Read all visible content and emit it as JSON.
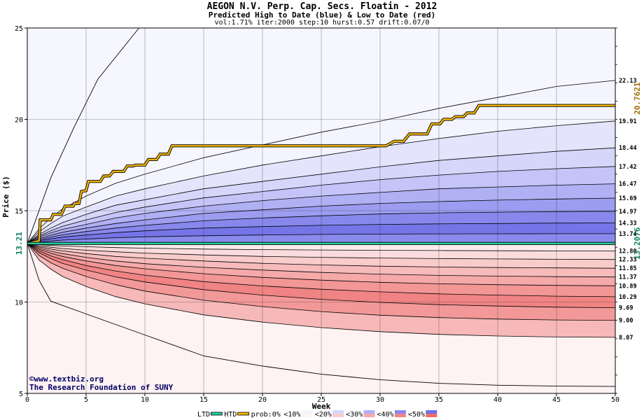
{
  "chart_data": {
    "type": "area",
    "title": "AEGON N.V. Perp. Cap. Secs. Floatin - 2012",
    "subtitle": "Predicted High to Date (blue) &  Low to Date (red)",
    "params": "vol:1.71% iter:2000 step:10 hurst:0.57 drift:0.07/0",
    "xlabel": "Week",
    "ylabel": "Price ($)",
    "xlim": [
      0,
      50
    ],
    "ylim": [
      5,
      25
    ],
    "x_ticks": [
      0,
      5,
      10,
      15,
      20,
      25,
      30,
      35,
      40,
      45,
      50
    ],
    "y_ticks": [
      5,
      10,
      15,
      20,
      25
    ],
    "grid": true,
    "start_price": 13.21,
    "start_price_label": "13.21",
    "weeks": [
      0,
      1,
      2,
      3,
      5,
      7.5,
      10,
      15,
      20,
      25,
      30,
      35,
      40,
      45,
      50
    ],
    "high_quantiles": [
      {
        "label": "22.13",
        "values": [
          13.21,
          14.0,
          14.6,
          15.1,
          15.8,
          16.5,
          17.0,
          17.9,
          18.6,
          19.3,
          19.9,
          20.6,
          21.2,
          21.8,
          22.13
        ]
      },
      {
        "label": "19.91",
        "values": [
          13.21,
          13.85,
          14.3,
          14.7,
          15.2,
          15.8,
          16.2,
          16.9,
          17.5,
          18.0,
          18.5,
          18.95,
          19.35,
          19.65,
          19.91
        ]
      },
      {
        "label": "18.44",
        "values": [
          13.21,
          13.7,
          14.05,
          14.35,
          14.8,
          15.3,
          15.6,
          16.2,
          16.6,
          17.0,
          17.4,
          17.75,
          18.0,
          18.25,
          18.44
        ]
      },
      {
        "label": "17.42",
        "values": [
          13.21,
          13.62,
          13.9,
          14.15,
          14.5,
          14.9,
          15.2,
          15.7,
          16.05,
          16.4,
          16.7,
          16.95,
          17.15,
          17.3,
          17.42
        ]
      },
      {
        "label": "16.47",
        "values": [
          13.21,
          13.55,
          13.78,
          13.98,
          14.25,
          14.6,
          14.85,
          15.25,
          15.55,
          15.8,
          16.0,
          16.2,
          16.3,
          16.4,
          16.47
        ]
      },
      {
        "label": "15.69",
        "values": [
          13.21,
          13.48,
          13.66,
          13.82,
          14.05,
          14.3,
          14.5,
          14.85,
          15.05,
          15.25,
          15.4,
          15.5,
          15.58,
          15.64,
          15.69
        ]
      },
      {
        "label": "14.97",
        "values": [
          13.21,
          13.42,
          13.56,
          13.68,
          13.86,
          14.05,
          14.2,
          14.45,
          14.6,
          14.72,
          14.82,
          14.88,
          14.92,
          14.95,
          14.97
        ]
      },
      {
        "label": "14.33",
        "values": [
          13.21,
          13.36,
          13.46,
          13.55,
          13.67,
          13.8,
          13.9,
          14.05,
          14.13,
          14.2,
          14.25,
          14.28,
          14.3,
          14.32,
          14.33
        ]
      },
      {
        "label": "13.74",
        "values": [
          13.21,
          13.29,
          13.34,
          13.39,
          13.45,
          13.52,
          13.57,
          13.63,
          13.67,
          13.7,
          13.72,
          13.73,
          13.735,
          13.74,
          13.74
        ]
      }
    ],
    "low_quantiles": [
      {
        "label": "12.80",
        "values": [
          13.21,
          13.14,
          13.1,
          13.07,
          13.03,
          12.98,
          12.95,
          12.9,
          12.87,
          12.85,
          12.83,
          12.82,
          12.81,
          12.8,
          12.8
        ]
      },
      {
        "label": "12.33",
        "values": [
          13.21,
          13.08,
          13.0,
          12.93,
          12.84,
          12.75,
          12.68,
          12.58,
          12.5,
          12.45,
          12.41,
          12.38,
          12.36,
          12.34,
          12.33
        ]
      },
      {
        "label": "11.85",
        "values": [
          13.21,
          13.02,
          12.9,
          12.8,
          12.65,
          12.5,
          12.4,
          12.25,
          12.12,
          12.03,
          11.96,
          11.92,
          11.89,
          11.87,
          11.85
        ]
      },
      {
        "label": "11.37",
        "values": [
          13.21,
          12.95,
          12.78,
          12.65,
          12.45,
          12.25,
          12.1,
          11.9,
          11.75,
          11.62,
          11.53,
          11.46,
          11.42,
          11.39,
          11.37
        ]
      },
      {
        "label": "10.89",
        "values": [
          13.21,
          12.88,
          12.67,
          12.5,
          12.25,
          12.0,
          11.82,
          11.55,
          11.35,
          11.2,
          11.08,
          11.0,
          10.95,
          10.91,
          10.89
        ]
      },
      {
        "label": "10.29",
        "values": [
          13.21,
          12.8,
          12.53,
          12.32,
          12.0,
          11.7,
          11.47,
          11.12,
          10.88,
          10.7,
          10.56,
          10.45,
          10.38,
          10.32,
          10.29
        ]
      },
      {
        "label": "9.69",
        "values": [
          13.21,
          12.7,
          12.38,
          12.12,
          11.75,
          11.38,
          11.1,
          10.68,
          10.38,
          10.15,
          9.98,
          9.86,
          9.78,
          9.72,
          9.69
        ]
      },
      {
        "label": "9.00",
        "values": [
          13.21,
          12.55,
          12.15,
          11.85,
          11.4,
          10.95,
          10.6,
          10.1,
          9.75,
          9.48,
          9.28,
          9.15,
          9.07,
          9.02,
          9.0
        ]
      },
      {
        "label": "8.07",
        "values": [
          13.21,
          12.3,
          11.8,
          11.4,
          10.85,
          10.3,
          9.9,
          9.3,
          8.9,
          8.6,
          8.38,
          8.23,
          8.14,
          8.09,
          8.07
        ]
      }
    ],
    "max_line": {
      "weeks": [
        0,
        2,
        4,
        6,
        9.5
      ],
      "values": [
        13.21,
        16.8,
        19.6,
        22.2,
        25.0
      ]
    },
    "min_line": {
      "weeks": [
        0,
        1,
        2,
        5,
        10,
        15,
        20,
        25,
        30,
        35,
        40,
        45,
        50
      ],
      "values": [
        13.21,
        11.2,
        10.05,
        9.35,
        8.2,
        7.05,
        6.5,
        6.05,
        5.75,
        5.55,
        5.45,
        5.4,
        5.38
      ]
    },
    "htd_series": {
      "name": "HTD",
      "final_label": "20.7621",
      "weeks": [
        0,
        1,
        1.1,
        2,
        2.2,
        2.9,
        3.2,
        3.9,
        4.0,
        4.4,
        4.6,
        5,
        5.2,
        6.2,
        6.5,
        7.0,
        7.3,
        8.2,
        8.5,
        9.0,
        9.2,
        10.0,
        10.3,
        11.0,
        11.3,
        12.0,
        12.3,
        30.5,
        31.2,
        32.0,
        32.5,
        34.0,
        34.4,
        35.1,
        35.4,
        36.1,
        36.4,
        37.1,
        37.4,
        38.0,
        38.4,
        50
      ],
      "values": [
        13.21,
        13.35,
        14.5,
        14.5,
        14.8,
        14.8,
        15.25,
        15.25,
        15.4,
        15.4,
        16.05,
        16.1,
        16.6,
        16.6,
        16.9,
        16.9,
        17.15,
        17.15,
        17.45,
        17.45,
        17.5,
        17.5,
        17.8,
        17.8,
        18.1,
        18.1,
        18.55,
        18.55,
        18.8,
        18.8,
        19.2,
        19.2,
        19.75,
        19.75,
        20.0,
        20.0,
        20.15,
        20.15,
        20.35,
        20.35,
        20.76,
        20.76
      ]
    },
    "ltd_series": {
      "name": "LTD",
      "final_label": "13.2076",
      "weeks": [
        0,
        0.5,
        1,
        50
      ],
      "values": [
        13.21,
        13.2076,
        13.2076,
        13.2076
      ]
    },
    "colors": {
      "high_bands": [
        "#f4f4ff",
        "#e4e4fc",
        "#d6d6fa",
        "#c4c4f8",
        "#b0b0f4",
        "#9c9cf0",
        "#8888ec",
        "#7575e8",
        "#8a8aec"
      ],
      "low_bands": [
        "#fdebeb",
        "#fbdcdc",
        "#f9cccc",
        "#f7bbbb",
        "#f5a9a9",
        "#f39696",
        "#f08383",
        "#f29898",
        "#f6b8b8"
      ],
      "above_outer": "#f6f6ff",
      "below_outer": "#fff2f2",
      "htd_line": "#f0b400",
      "ltd_line": "#20d0a0",
      "htd_label": "#a07000",
      "ltd_label": "#108060"
    }
  },
  "credits": {
    "line1": "©www.textbiz.org",
    "line2": "The Research Foundation of SUNY"
  },
  "legend": {
    "items": [
      {
        "label": "LTD",
        "swatch": "line",
        "color": "#20d0a0"
      },
      {
        "label": "HTD",
        "swatch": "line",
        "color": "#f0b400"
      },
      {
        "label": "prob:0%",
        "swatch": "none"
      },
      {
        "label": "<10%",
        "swatch": "split",
        "color_top": "#f4f4ff",
        "color_bottom": "#fff2f2"
      },
      {
        "label": "<20%",
        "swatch": "split",
        "color_top": "#d6d6fa",
        "color_bottom": "#f9cccc"
      },
      {
        "label": "<30%",
        "swatch": "split",
        "color_top": "#b0b0f4",
        "color_bottom": "#f5a9a9"
      },
      {
        "label": "<40%",
        "swatch": "split",
        "color_top": "#8888ec",
        "color_bottom": "#f08383"
      },
      {
        "label": "<50%",
        "swatch": "split",
        "color_top": "#7070e8",
        "color_bottom": "#f06a6a"
      }
    ]
  }
}
